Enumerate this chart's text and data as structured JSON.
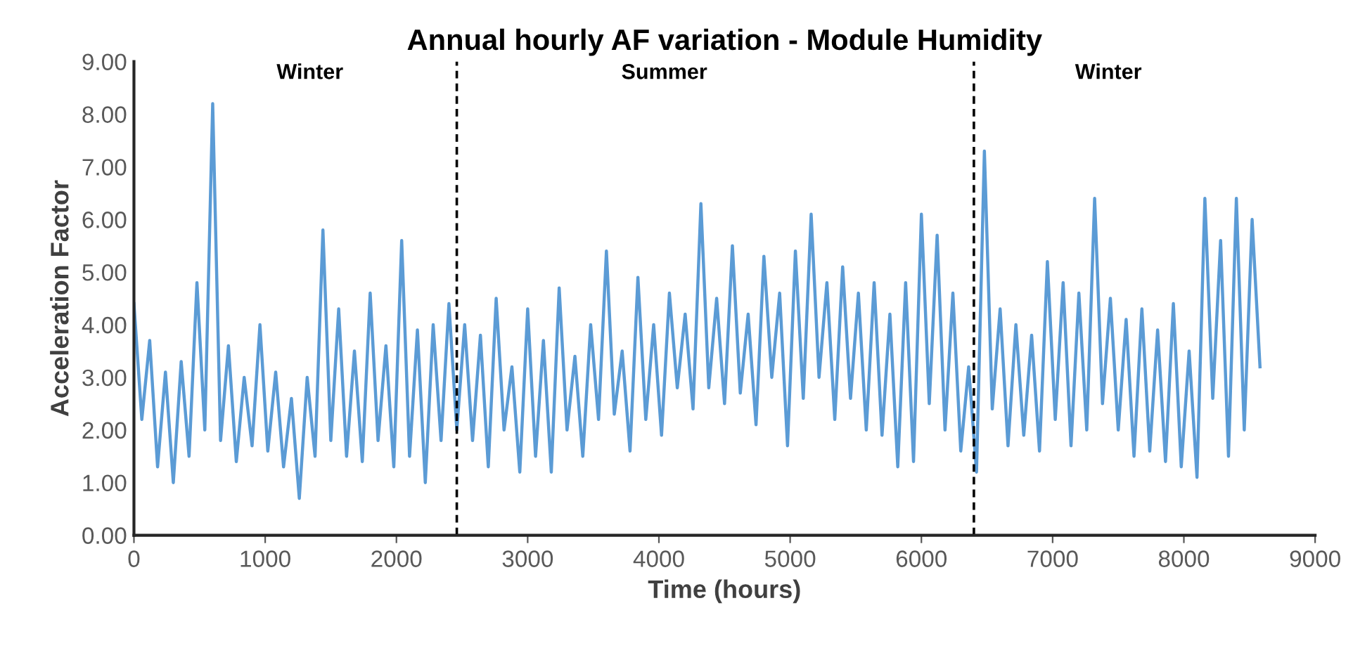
{
  "chart_data": {
    "type": "line",
    "title": "Annual hourly AF variation - Module Humidity",
    "xlabel": "Time (hours)",
    "ylabel": "Acceleration Factor",
    "x": [
      0,
      60,
      120,
      180,
      240,
      300,
      360,
      420,
      480,
      540,
      600,
      660,
      720,
      780,
      840,
      900,
      960,
      1020,
      1080,
      1140,
      1200,
      1260,
      1320,
      1380,
      1440,
      1500,
      1560,
      1620,
      1680,
      1740,
      1800,
      1860,
      1920,
      1980,
      2040,
      2100,
      2160,
      2220,
      2280,
      2340,
      2400,
      2460,
      2520,
      2580,
      2640,
      2700,
      2760,
      2820,
      2880,
      2940,
      3000,
      3060,
      3120,
      3180,
      3240,
      3300,
      3360,
      3420,
      3480,
      3540,
      3600,
      3660,
      3720,
      3780,
      3840,
      3900,
      3960,
      4020,
      4080,
      4140,
      4200,
      4260,
      4320,
      4380,
      4440,
      4500,
      4560,
      4620,
      4680,
      4740,
      4800,
      4860,
      4920,
      4980,
      5040,
      5100,
      5160,
      5220,
      5280,
      5340,
      5400,
      5460,
      5520,
      5580,
      5640,
      5700,
      5760,
      5820,
      5880,
      5940,
      6000,
      6060,
      6120,
      6180,
      6240,
      6300,
      6360,
      6420,
      6480,
      6540,
      6600,
      6660,
      6720,
      6780,
      6840,
      6900,
      6960,
      7020,
      7080,
      7140,
      7200,
      7260,
      7320,
      7380,
      7440,
      7500,
      7560,
      7620,
      7680,
      7740,
      7800,
      7860,
      7920,
      7980,
      8040,
      8100,
      8160,
      8220,
      8280,
      8340,
      8400,
      8460,
      8520,
      8580
    ],
    "series": [
      {
        "color": "#5b9bd5",
        "values": [
          4.4,
          2.2,
          3.7,
          1.3,
          3.1,
          1.0,
          3.3,
          1.5,
          4.8,
          2.0,
          8.2,
          1.8,
          3.6,
          1.4,
          3.0,
          1.7,
          4.0,
          1.6,
          3.1,
          1.3,
          2.6,
          0.7,
          3.0,
          1.5,
          5.8,
          1.8,
          4.3,
          1.5,
          3.5,
          1.4,
          4.6,
          1.8,
          3.6,
          1.3,
          5.6,
          1.5,
          3.9,
          1.0,
          4.0,
          1.8,
          4.4,
          2.0,
          4.0,
          1.8,
          3.8,
          1.3,
          4.5,
          2.0,
          3.2,
          1.2,
          4.3,
          1.5,
          3.7,
          1.2,
          4.7,
          2.0,
          3.4,
          1.5,
          4.0,
          2.2,
          5.4,
          2.3,
          3.5,
          1.6,
          4.9,
          2.2,
          4.0,
          1.9,
          4.6,
          2.8,
          4.2,
          2.4,
          6.3,
          2.8,
          4.5,
          2.5,
          5.5,
          2.7,
          4.2,
          2.1,
          5.3,
          3.0,
          4.6,
          1.7,
          5.4,
          2.6,
          6.1,
          3.0,
          4.8,
          2.2,
          5.1,
          2.6,
          4.6,
          2.0,
          4.8,
          1.9,
          4.2,
          1.3,
          4.8,
          1.4,
          6.1,
          2.5,
          5.7,
          2.0,
          4.6,
          1.6,
          3.2,
          1.2,
          7.3,
          2.4,
          4.3,
          1.7,
          4.0,
          1.9,
          3.8,
          1.6,
          5.2,
          2.2,
          4.8,
          1.7,
          4.6,
          2.0,
          6.4,
          2.5,
          4.5,
          2.0,
          4.1,
          1.5,
          4.3,
          1.6,
          3.9,
          1.4,
          4.4,
          1.3,
          3.5,
          1.1,
          6.4,
          2.6,
          5.6,
          1.5,
          6.4,
          2.0,
          6.0,
          3.2
        ]
      }
    ],
    "xlim": [
      0,
      9000
    ],
    "xticks": [
      0,
      1000,
      2000,
      3000,
      4000,
      5000,
      6000,
      7000,
      8000,
      9000
    ],
    "ylim": [
      0,
      9
    ],
    "yticks": [
      {
        "value": 0,
        "label": "0.00"
      },
      {
        "value": 1,
        "label": "1.00"
      },
      {
        "value": 2,
        "label": "2.00"
      },
      {
        "value": 3,
        "label": "3.00"
      },
      {
        "value": 4,
        "label": "4.00"
      },
      {
        "value": 5,
        "label": "5.00"
      },
      {
        "value": 6,
        "label": "6.00"
      },
      {
        "value": 7,
        "label": "7.00"
      },
      {
        "value": 8,
        "label": "8.00"
      },
      {
        "value": 9,
        "label": "9.00"
      }
    ],
    "ref_lines": [
      {
        "axis": "x",
        "value": 2460,
        "label": null,
        "color": "#000000",
        "line_style": "dashed"
      },
      {
        "axis": "x",
        "value": 6400,
        "label": null,
        "color": "#000000",
        "line_style": "dashed"
      }
    ],
    "annotations": [
      "Winter",
      "Summer",
      "Winter"
    ],
    "grid": false,
    "legend": false,
    "marker": "none",
    "line_style": "solid"
  }
}
